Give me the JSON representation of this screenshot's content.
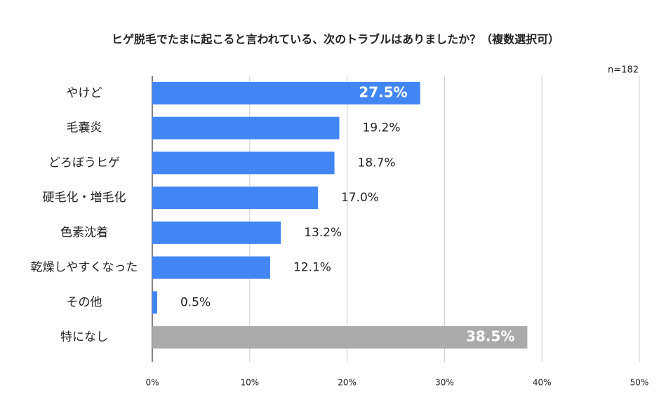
{
  "chart_data": {
    "type": "bar",
    "orientation": "horizontal",
    "title": "ヒゲ脱毛でたまに起こると言われている、次のトラブルはありましたか？（複数選択可）",
    "annotation": "n=182",
    "categories": [
      "やけど",
      "毛嚢炎",
      "どろぼうヒゲ",
      "硬毛化・増毛化",
      "色素沈着",
      "乾燥しやすくなった",
      "その他",
      "特になし"
    ],
    "values": [
      27.5,
      19.2,
      18.7,
      17.0,
      13.2,
      12.1,
      0.5,
      38.5
    ],
    "value_labels": [
      "27.5%",
      "19.2%",
      "18.7%",
      "17.0%",
      "13.2%",
      "12.1%",
      "0.5%",
      "38.5%"
    ],
    "colors": [
      "#4285f4",
      "#4285f4",
      "#4285f4",
      "#4285f4",
      "#4285f4",
      "#4285f4",
      "#4285f4",
      "#aaaaaa"
    ],
    "xlim": [
      0,
      50
    ],
    "xticks": [
      {
        "value": 0,
        "label": "0%"
      },
      {
        "value": 10,
        "label": "10%"
      },
      {
        "value": 20,
        "label": "20%"
      },
      {
        "value": 30,
        "label": "30%"
      },
      {
        "value": 40,
        "label": "40%"
      },
      {
        "value": 50,
        "label": "50%"
      }
    ],
    "grid": true
  }
}
